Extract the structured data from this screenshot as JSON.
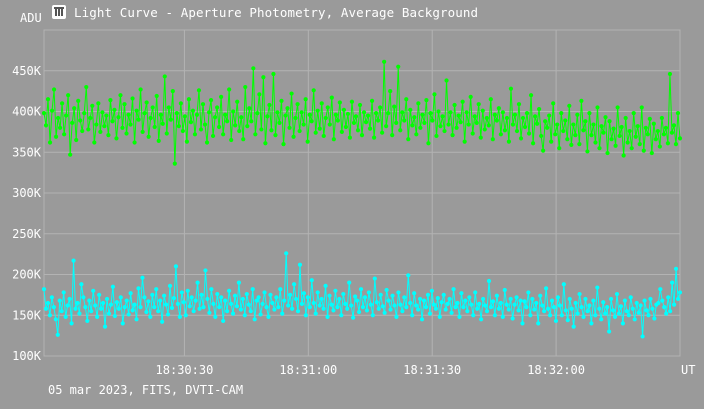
{
  "window": {
    "title": "Light Curve - Aperture Photometry, Average Background",
    "icon": "telescope-app-icon"
  },
  "footer": {
    "caption": "05 mar 2023, FITS, DVTI-CAM"
  },
  "colors": {
    "background": "#9a9a9a",
    "grid": "#b3b3b3",
    "text": "#ffffff",
    "series_green": "#00ff00",
    "series_cyan": "#00ffff"
  },
  "chart_data": {
    "type": "line",
    "ylabel": "ADU",
    "xlabel": "UT",
    "ylim": [
      100000,
      500000
    ],
    "xlim": [
      "18:29:56",
      "18:32:30"
    ],
    "grid": true,
    "y_ticks": [
      {
        "value": 100000,
        "label": "100K"
      },
      {
        "value": 150000,
        "label": "150K"
      },
      {
        "value": 200000,
        "label": "200K"
      },
      {
        "value": 250000,
        "label": "250K"
      },
      {
        "value": 300000,
        "label": "300K"
      },
      {
        "value": 350000,
        "label": "350K"
      },
      {
        "value": 400000,
        "label": "400K"
      },
      {
        "value": 450000,
        "label": "450K"
      }
    ],
    "x_ticks": [
      {
        "value": "18:30:30",
        "label": "18:30:30"
      },
      {
        "value": "18:31:00",
        "label": "18:31:00"
      },
      {
        "value": "18:31:30",
        "label": "18:31:30"
      },
      {
        "value": "18:32:00",
        "label": "18:32:00"
      }
    ],
    "series": [
      {
        "color": "#00ff00",
        "x_start": "18:29:56",
        "x_end": "18:32:30",
        "values": [
          398000,
          383000,
          415000,
          362000,
          401000,
          427000,
          369000,
          392000,
          380000,
          410000,
          372000,
          395000,
          420000,
          347000,
          386000,
          404000,
          365000,
          413000,
          389000,
          376000,
          398000,
          430000,
          378000,
          392000,
          407000,
          362000,
          384000,
          410000,
          375000,
          399000,
          382000,
          395000,
          371000,
          414000,
          388000,
          402000,
          367000,
          393000,
          420000,
          380000,
          409000,
          373000,
          396000,
          384000,
          416000,
          362000,
          401000,
          390000,
          427000,
          375000,
          398000,
          411000,
          369000,
          392000,
          405000,
          381000,
          419000,
          364000,
          396000,
          385000,
          443000,
          373000,
          405000,
          390000,
          425000,
          336000,
          398000,
          382000,
          410000,
          376000,
          394000,
          363000,
          415000,
          387000,
          401000,
          372000,
          396000,
          426000,
          378000,
          409000,
          384000,
          362000,
          399000,
          414000,
          370000,
          393000,
          405000,
          381000,
          418000,
          372000,
          396000,
          388000,
          427000,
          365000,
          400000,
          383000,
          412000,
          376000,
          393000,
          366000,
          430000,
          382000,
          404000,
          388000,
          453000,
          372000,
          398000,
          421000,
          378000,
          442000,
          361000,
          394000,
          408000,
          377000,
          446000,
          371000,
          399000,
          386000,
          413000,
          360000,
          395000,
          404000,
          380000,
          422000,
          369000,
          392000,
          409000,
          376000,
          399000,
          384000,
          415000,
          363000,
          396000,
          388000,
          426000,
          374000,
          401000,
          379000,
          410000,
          370000,
          392000,
          405000,
          384000,
          417000,
          366000,
          396000,
          389000,
          411000,
          375000,
          402000,
          381000,
          397000,
          368000,
          412000,
          386000,
          394000,
          377000,
          408000,
          371000,
          399000,
          387000,
          395000,
          379000,
          413000,
          368000,
          398000,
          389000,
          405000,
          374000,
          461000,
          382000,
          398000,
          425000,
          371000,
          406000,
          386000,
          455000,
          377000,
          399000,
          389000,
          415000,
          366000,
          402000,
          383000,
          393000,
          372000,
          410000,
          380000,
          396000,
          386000,
          414000,
          361000,
          398000,
          389000,
          421000,
          370000,
          400000,
          382000,
          394000,
          376000,
          438000,
          384000,
          399000,
          371000,
          408000,
          380000,
          395000,
          387000,
          412000,
          363000,
          399000,
          384000,
          418000,
          373000,
          394000,
          386000,
          409000,
          368000,
          401000,
          378000,
          392000,
          383000,
          415000,
          366000,
          396000,
          389000,
          404000,
          372000,
          399000,
          377000,
          392000,
          363000,
          428000,
          384000,
          396000,
          376000,
          409000,
          367000,
          392000,
          381000,
          398000,
          373000,
          420000,
          361000,
          394000,
          385000,
          403000,
          370000,
          352000,
          388000,
          380000,
          395000,
          363000,
          410000,
          372000,
          384000,
          355000,
          398000,
          376000,
          389000,
          366000,
          407000,
          359000,
          384000,
          371000,
          396000,
          360000,
          413000,
          377000,
          388000,
          351000,
          398000,
          371000,
          384000,
          362000,
          405000,
          355000,
          382000,
          374000,
          393000,
          349000,
          388000,
          366000,
          379000,
          358000,
          405000,
          370000,
          381000,
          346000,
          392000,
          362000,
          376000,
          355000,
          398000,
          369000,
          382000,
          360000,
          405000,
          352000,
          380000,
          372000,
          391000,
          349000,
          385000,
          366000,
          376000,
          357000,
          392000,
          372000,
          380000,
          361000,
          446000,
          374000,
          383000,
          360000,
          398000,
          367000
        ]
      },
      {
        "color": "#00ffff",
        "x_start": "18:29:56",
        "x_end": "18:32:30",
        "values": [
          182000,
          158000,
          165000,
          150000,
          172000,
          160000,
          145000,
          126000,
          168000,
          155000,
          178000,
          148000,
          162000,
          170000,
          140000,
          217000,
          158000,
          165000,
          152000,
          188000,
          172000,
          160000,
          143000,
          168000,
          155000,
          180000,
          162000,
          148000,
          175000,
          158000,
          165000,
          136000,
          170000,
          152000,
          163000,
          185000,
          149000,
          166000,
          158000,
          172000,
          140000,
          160000,
          168000,
          151000,
          177000,
          156000,
          163000,
          145000,
          183000,
          160000,
          196000,
          172000,
          154000,
          167000,
          148000,
          175000,
          160000,
          182000,
          155000,
          168000,
          142000,
          174000,
          163000,
          151000,
          186000,
          159000,
          171000,
          210000,
          164000,
          148000,
          178000,
          166000,
          150000,
          180000,
          161000,
          172000,
          155000,
          168000,
          190000,
          158000,
          175000,
          160000,
          205000,
          170000,
          153000,
          182000,
          164000,
          148000,
          176000,
          160000,
          172000,
          143000,
          168000,
          155000,
          180000,
          164000,
          152000,
          174000,
          161000,
          190000,
          157000,
          170000,
          150000,
          176000,
          163000,
          155000,
          182000,
          145000,
          168000,
          172000,
          151000,
          164000,
          178000,
          160000,
          148000,
          175000,
          165000,
          157000,
          172000,
          160000,
          182000,
          152000,
          168000,
          226000,
          162000,
          175000,
          158000,
          188000,
          170000,
          155000,
          212000,
          164000,
          177000,
          150000,
          172000,
          160000,
          193000,
          165000,
          152000,
          178000,
          162000,
          170000,
          158000,
          186000,
          148000,
          174000,
          163000,
          156000,
          180000,
          160000,
          170000,
          150000,
          176000,
          164000,
          158000,
          190000,
          162000,
          147000,
          173000,
          168000,
          154000,
          182000,
          160000,
          172000,
          156000,
          178000,
          163000,
          150000,
          195000,
          166000,
          158000,
          175000,
          161000,
          153000,
          181000,
          168000,
          157000,
          174000,
          162000,
          148000,
          178000,
          163000,
          155000,
          172000,
          160000,
          199000,
          165000,
          150000,
          177000,
          162000,
          157000,
          170000,
          145000,
          168000,
          160000,
          175000,
          152000,
          180000,
          163000,
          158000,
          171000,
          148000,
          166000,
          175000,
          157000,
          164000,
          170000,
          153000,
          182000,
          160000,
          165000,
          148000,
          177000,
          160000,
          168000,
          155000,
          172000,
          163000,
          150000,
          178000,
          158000,
          164000,
          145000,
          170000,
          162000,
          155000,
          192000,
          160000,
          167000,
          150000,
          174000,
          158000,
          165000,
          148000,
          181000,
          163000,
          157000,
          170000,
          146000,
          163000,
          172000,
          156000,
          168000,
          140000,
          167000,
          160000,
          178000,
          150000,
          170000,
          157000,
          165000,
          140000,
          174000,
          162000,
          155000,
          183000,
          158000,
          150000,
          168000,
          160000,
          143000,
          172000,
          162000,
          150000,
          188000,
          156000,
          144000,
          170000,
          158000,
          136000,
          165000,
          152000,
          176000,
          160000,
          148000,
          170000,
          155000,
          162000,
          140000,
          168000,
          150000,
          184000,
          158000,
          145000,
          166000,
          152000,
          160000,
          130000,
          170000,
          156000,
          148000,
          176000,
          152000,
          161000,
          140000,
          168000,
          155000,
          150000,
          172000,
          158000,
          145000,
          165000,
          153000,
          162000,
          124000,
          168000,
          156000,
          150000,
          170000,
          158000,
          146000,
          163000,
          165000,
          182000,
          168000,
          160000,
          152000,
          172000,
          155000,
          190000,
          163000,
          207000,
          170000,
          178000
        ]
      }
    ]
  }
}
